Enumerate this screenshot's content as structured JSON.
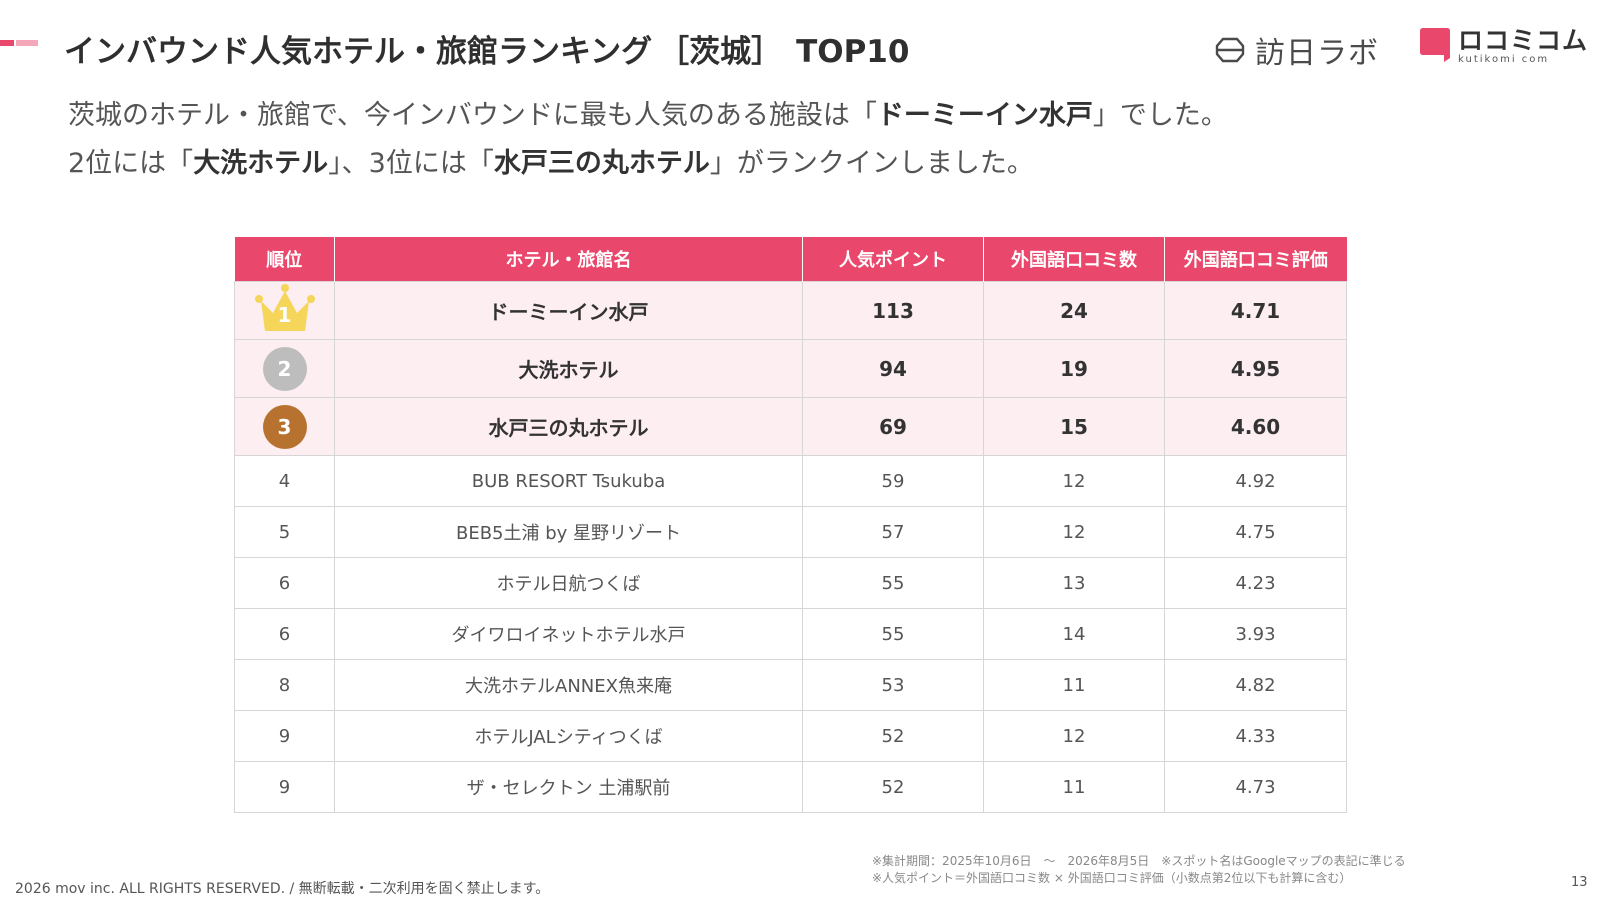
{
  "title": {
    "main": "インバウンド人気ホテル・旅館ランキング",
    "region": "［茨城］",
    "suffix": "TOP10"
  },
  "logos": {
    "brand1": "訪日ラボ",
    "brand2_main": "ロコミコム",
    "brand2_sub": "kutikomi com"
  },
  "lead": {
    "l1_pre": "茨城のホテル・旅館で、今インバウンドに最も人気のある施設は「",
    "l1_bold": "ドーミーイン水戸",
    "l1_post": "」でした。",
    "l2_a": "2位には「",
    "l2_b": "大洗ホテル",
    "l2_c": "」、3位には「",
    "l2_d": "水戸三の丸ホテル",
    "l2_e": "」がランクインしました。"
  },
  "table": {
    "headers": [
      "順位",
      "ホテル・旅館名",
      "人気ポイント",
      "外国語口コミ数",
      "外国語口コミ評価"
    ],
    "rows": [
      {
        "rank": "1",
        "name": "ドーミーイン水戸",
        "points": "113",
        "reviews": "24",
        "rating": "4.71"
      },
      {
        "rank": "2",
        "name": "大洗ホテル",
        "points": "94",
        "reviews": "19",
        "rating": "4.95"
      },
      {
        "rank": "3",
        "name": "水戸三の丸ホテル",
        "points": "69",
        "reviews": "15",
        "rating": "4.60"
      },
      {
        "rank": "4",
        "name": "BUB RESORT Tsukuba",
        "points": "59",
        "reviews": "12",
        "rating": "4.92"
      },
      {
        "rank": "5",
        "name": "BEB5土浦 by 星野リゾート",
        "points": "57",
        "reviews": "12",
        "rating": "4.75"
      },
      {
        "rank": "6",
        "name": "ホテル日航つくば",
        "points": "55",
        "reviews": "13",
        "rating": "4.23"
      },
      {
        "rank": "6",
        "name": "ダイワロイネットホテル水戸",
        "points": "55",
        "reviews": "14",
        "rating": "3.93"
      },
      {
        "rank": "8",
        "name": "大洗ホテルANNEX魚来庵",
        "points": "53",
        "reviews": "11",
        "rating": "4.82"
      },
      {
        "rank": "9",
        "name": "ホテルJALシティつくば",
        "points": "52",
        "reviews": "12",
        "rating": "4.33"
      },
      {
        "rank": "9",
        "name": "ザ・セレクトン 土浦駅前",
        "points": "52",
        "reviews": "11",
        "rating": "4.73"
      }
    ]
  },
  "notes": {
    "line1": "※集計期間：2025年10月6日　〜　2026年8月5日　※スポット名はGoogleマップの表記に準じる",
    "line2": "※人気ポイント＝外国語口コミ数 × 外国語口コミ評価（小数点第2位以下も計算に含む）"
  },
  "footer": {
    "copyright": "2026 mov inc. ALL RIGHTS RESERVED. / 無断転載・二次利用を固く禁止します。",
    "page": "13"
  },
  "colors": {
    "accent": "#e9476b",
    "accent_light": "#f4a7b8",
    "row_highlight": "#fdeef2",
    "gold": "#f5d55a",
    "silver": "#bdbdbd",
    "bronze": "#b8722f"
  },
  "icons": {
    "rank1": "crown-icon",
    "rank2": "silver-medal-icon",
    "rank3": "bronze-medal-icon"
  }
}
